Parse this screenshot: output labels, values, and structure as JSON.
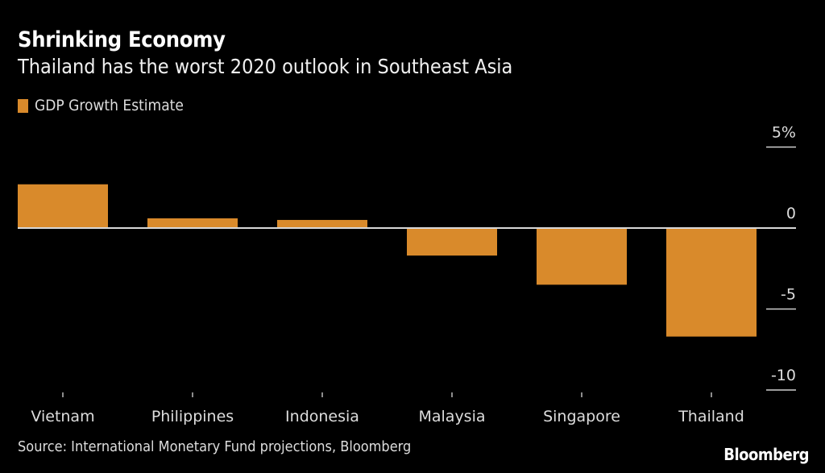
{
  "chart_data": {
    "type": "bar",
    "title": "Shrinking Economy",
    "subtitle": "Thailand has the worst 2020 outlook in Southeast Asia",
    "categories": [
      "Vietnam",
      "Philippines",
      "Indonesia",
      "Malaysia",
      "Singapore",
      "Thailand"
    ],
    "series": [
      {
        "name": "GDP Growth Estimate",
        "values": [
          2.7,
          0.6,
          0.5,
          -1.7,
          -3.5,
          -6.7
        ],
        "color": "#d98a2b"
      }
    ],
    "yticks": [
      5,
      0,
      -5,
      -10
    ],
    "ytick_labels": [
      "5%",
      "0",
      "-5",
      "-10"
    ],
    "ylim": [
      -10,
      5
    ],
    "xlabel": "",
    "ylabel": "",
    "legend_position": "top-left",
    "grid": false
  },
  "legend": {
    "label": "GDP Growth Estimate"
  },
  "footer": {
    "source": "Source: International Monetary Fund projections, Bloomberg",
    "brand": "Bloomberg"
  },
  "colors": {
    "background": "#000000",
    "bar": "#d98a2b",
    "axis": "#cccccc"
  }
}
